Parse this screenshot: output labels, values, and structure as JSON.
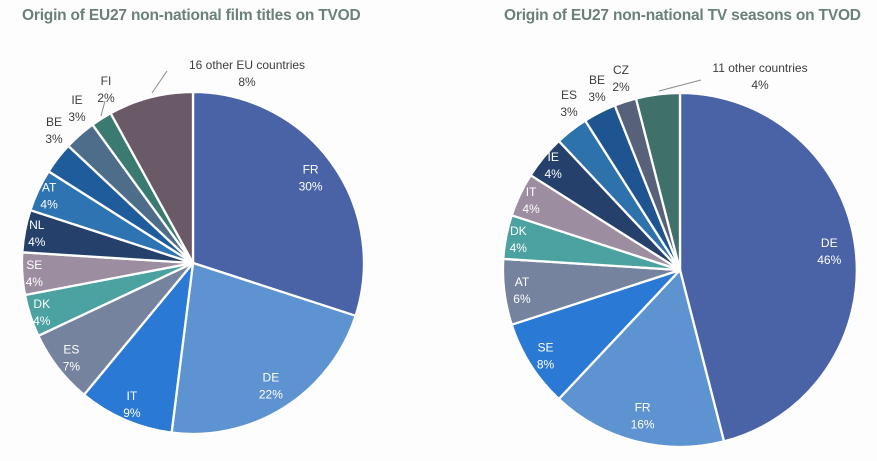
{
  "page": {
    "background_color": "#FDFDFD",
    "title_color": "#6B8078",
    "label_color": "#3D3D3D",
    "slice_border_color": "#FFFFFF",
    "leader_line_color": "#8C8C8C"
  },
  "chart_data": [
    {
      "type": "pie",
      "title": "Origin of EU27 non-national film titles on TVOD",
      "units": "%",
      "direction": "clockwise",
      "start_angle_deg": 0,
      "legend": "none",
      "slices": [
        {
          "label": "FR",
          "value": 30,
          "color": "#4A63A7",
          "label_placement": "inside"
        },
        {
          "label": "DE",
          "value": 22,
          "color": "#5E93D1",
          "label_placement": "inside"
        },
        {
          "label": "IT",
          "value": 9,
          "color": "#2A79D4",
          "label_placement": "inside"
        },
        {
          "label": "ES",
          "value": 7,
          "color": "#76839E",
          "label_placement": "inside"
        },
        {
          "label": "DK",
          "value": 4,
          "color": "#4CA2A0",
          "label_placement": "inside"
        },
        {
          "label": "SE",
          "value": 4,
          "color": "#9C8EA0",
          "label_placement": "inside"
        },
        {
          "label": "NL",
          "value": 4,
          "color": "#25406B",
          "label_placement": "inside"
        },
        {
          "label": "AT",
          "value": 4,
          "color": "#2E74B2",
          "label_placement": "inside"
        },
        {
          "label": "BE",
          "value": 3,
          "color": "#1F5C9C",
          "label_placement": "outside"
        },
        {
          "label": "IE",
          "value": 3,
          "color": "#4E6D8B",
          "label_placement": "outside"
        },
        {
          "label": "FI",
          "value": 2,
          "color": "#3B7A71",
          "label_placement": "outside",
          "leader_line": true
        },
        {
          "label": "16 other EU countries",
          "value": 8,
          "color": "#6A5A68",
          "label_placement": "outside",
          "leader_line": true
        }
      ]
    },
    {
      "type": "pie",
      "title": "Origin of EU27 non-national TV seasons on TVOD",
      "units": "%",
      "direction": "clockwise",
      "start_angle_deg": 0,
      "legend": "none",
      "slices": [
        {
          "label": "DE",
          "value": 46,
          "color": "#4A63A7",
          "label_placement": "inside"
        },
        {
          "label": "FR",
          "value": 16,
          "color": "#5E93D1",
          "label_placement": "inside"
        },
        {
          "label": "SE",
          "value": 8,
          "color": "#2A79D4",
          "label_placement": "inside"
        },
        {
          "label": "AT",
          "value": 6,
          "color": "#76839E",
          "label_placement": "inside"
        },
        {
          "label": "DK",
          "value": 4,
          "color": "#4CA2A0",
          "label_placement": "inside"
        },
        {
          "label": "IT",
          "value": 4,
          "color": "#9C8EA0",
          "label_placement": "inside"
        },
        {
          "label": "IE",
          "value": 4,
          "color": "#25406B",
          "label_placement": "inside"
        },
        {
          "label": "ES",
          "value": 3,
          "color": "#2E72AC",
          "label_placement": "outside"
        },
        {
          "label": "BE",
          "value": 3,
          "color": "#1E5590",
          "label_placement": "outside"
        },
        {
          "label": "CZ",
          "value": 2,
          "color": "#57627A",
          "label_placement": "outside"
        },
        {
          "label": "11 other countries",
          "value": 4,
          "color": "#40706A",
          "label_placement": "outside",
          "leader_line": true
        }
      ]
    }
  ]
}
